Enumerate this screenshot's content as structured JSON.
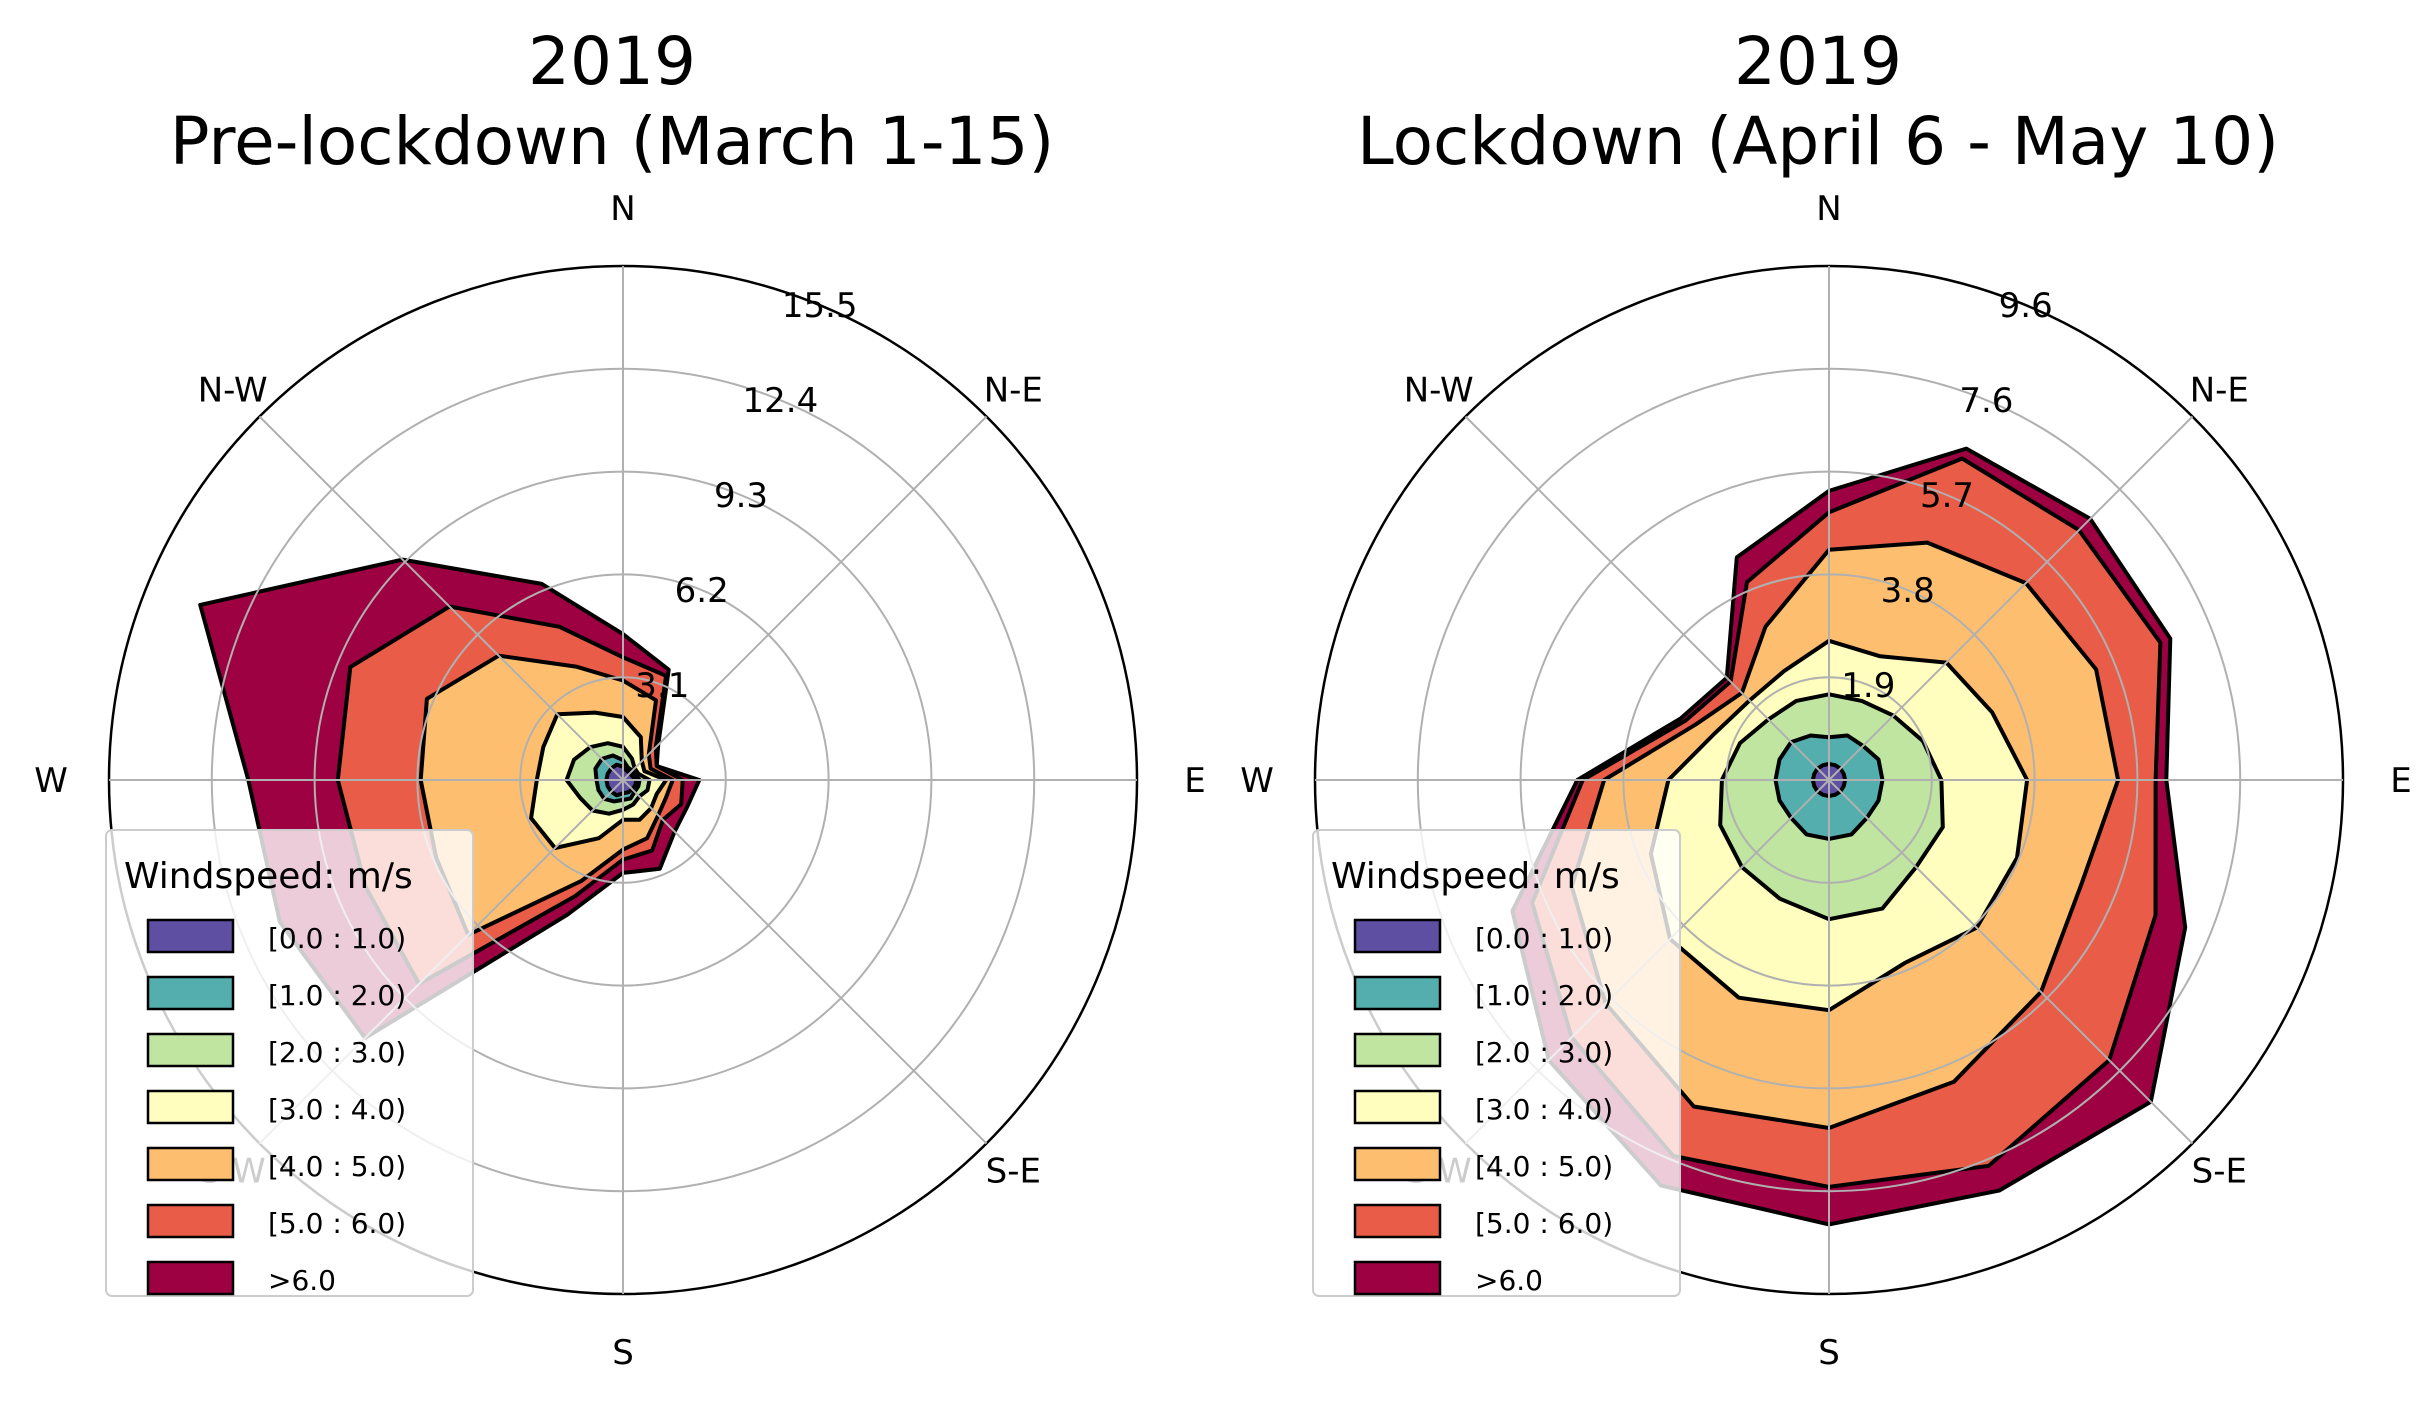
{
  "chart_data": [
    {
      "type": "windrose",
      "title": "2019",
      "subtitle": "Pre-lockdown (March 1-15)",
      "directions": [
        "E",
        "N-E",
        "N",
        "N-W",
        "W",
        "S-W",
        "S",
        "S-E"
      ],
      "ring_ticks": [
        "3.1",
        "6.2",
        "9.3",
        "12.4",
        "15.5"
      ],
      "rmax": 15.5,
      "sector_angles_deg": [
        0,
        22.5,
        45,
        67.5,
        90,
        112.5,
        135,
        157.5,
        180,
        202.5,
        225,
        247.5,
        270,
        292.5,
        315,
        337.5
      ],
      "legend": {
        "title": "Windspeed: m/s",
        "placement": "lower-left",
        "entries": [
          "[0.0 : 1.0)",
          "[1.0 : 2.0)",
          "[2.0 : 3.0)",
          "[3.0 : 4.0)",
          "[4.0 : 5.0)",
          "[5.0 : 6.0)",
          ">6.0"
        ]
      },
      "colors": [
        "#5e4fa2",
        "#54aead",
        "#bfe5a0",
        "#fffebe",
        "#fdbf6f",
        "#e95c47",
        "#9e0142"
      ],
      "cumulative_radii": [
        [
          0.4,
          0.3,
          0.3,
          0.3,
          0.4,
          0.5,
          0.5,
          0.5,
          0.5,
          0.5,
          0.5,
          0.5,
          0.4,
          0.4,
          0.4,
          0.4
        ],
        [
          0.5,
          0.4,
          0.4,
          0.4,
          0.6,
          0.8,
          0.9,
          0.9,
          0.8,
          0.8,
          0.8,
          0.7,
          0.6,
          0.6,
          0.5,
          0.5
        ],
        [
          0.8,
          0.5,
          0.5,
          0.7,
          1.0,
          1.2,
          1.4,
          1.6,
          1.7,
          1.4,
          1.3,
          1.1,
          0.9,
          0.8,
          0.7,
          0.8
        ],
        [
          1.3,
          0.7,
          0.8,
          1.4,
          1.9,
          2.2,
          2.8,
          2.6,
          2.6,
          3.0,
          2.9,
          1.9,
          1.2,
          1.3,
          1.2,
          1.1
        ],
        [
          1.5,
          0.9,
          1.1,
          2.6,
          3.0,
          3.7,
          5.3,
          6.4,
          6.1,
          6.1,
          6.6,
          3.3,
          2.1,
          1.9,
          1.5,
          1.4
        ],
        [
          1.8,
          1.1,
          1.4,
          3.4,
          3.7,
          5.0,
          7.4,
          8.9,
          8.6,
          8.4,
          8.7,
          3.8,
          2.4,
          2.3,
          1.7,
          1.9
        ],
        [
          2.3,
          1.1,
          1.5,
          3.6,
          4.4,
          6.4,
          9.4,
          13.8,
          11.3,
          11.2,
          11.0,
          4.4,
          2.8,
          2.9,
          2.2,
          2.1
        ]
      ]
    },
    {
      "type": "windrose",
      "title": "2019",
      "subtitle": "Lockdown (April 6 - May 10)",
      "directions": [
        "E",
        "N-E",
        "N",
        "N-W",
        "W",
        "S-W",
        "S",
        "S-E"
      ],
      "ring_ticks": [
        "1.9",
        "3.8",
        "5.7",
        "7.6",
        "9.6"
      ],
      "rmax": 9.6,
      "sector_angles_deg": [
        0,
        22.5,
        45,
        67.5,
        90,
        112.5,
        135,
        157.5,
        180,
        202.5,
        225,
        247.5,
        270,
        292.5,
        315,
        337.5
      ],
      "legend": {
        "title": "Windspeed: m/s",
        "placement": "lower-left",
        "entries": [
          "[0.0 : 1.0)",
          "[1.0 : 2.0)",
          "[2.0 : 3.0)",
          "[3.0 : 4.0)",
          "[4.0 : 5.0)",
          "[5.0 : 6.0)",
          ">6.0"
        ]
      },
      "colors": [
        "#5e4fa2",
        "#54aead",
        "#bfe5a0",
        "#fffebe",
        "#fdbf6f",
        "#e95c47",
        "#9e0142"
      ],
      "cumulative_radii": [
        [
          0.3,
          0.3,
          0.3,
          0.3,
          0.3,
          0.3,
          0.3,
          0.3,
          0.3,
          0.3,
          0.3,
          0.3,
          0.3,
          0.3,
          0.3,
          0.3
        ],
        [
          1.0,
          1.0,
          0.9,
          0.9,
          0.8,
          0.9,
          1.0,
          1.0,
          1.0,
          1.0,
          1.0,
          1.1,
          1.1,
          1.1,
          1.0,
          1.0
        ],
        [
          2.1,
          1.9,
          1.7,
          1.6,
          1.6,
          1.6,
          1.6,
          1.8,
          2.0,
          2.2,
          2.3,
          2.4,
          2.6,
          2.6,
          2.3,
          2.3
        ],
        [
          3.7,
          3.3,
          3.1,
          2.5,
          2.6,
          2.2,
          2.1,
          2.3,
          3.0,
          3.6,
          4.2,
          4.4,
          4.3,
          3.7,
          3.9,
          3.8
        ],
        [
          5.4,
          5.4,
          5.2,
          4.8,
          4.3,
          3.1,
          2.3,
          2.7,
          4.2,
          5.2,
          5.9,
          6.6,
          6.5,
          6.1,
          5.6,
          5.1
        ],
        [
          6.1,
          6.7,
          6.6,
          6.5,
          5.0,
          4.0,
          2.6,
          2.9,
          4.6,
          6.0,
          6.8,
          7.6,
          7.6,
          7.8,
          7.4,
          6.6
        ],
        [
          6.3,
          6.9,
          6.9,
          6.7,
          5.4,
          4.5,
          2.7,
          3.0,
          4.7,
          6.4,
          7.4,
          8.2,
          8.3,
          8.3,
          8.5,
          7.2
        ]
      ]
    }
  ]
}
